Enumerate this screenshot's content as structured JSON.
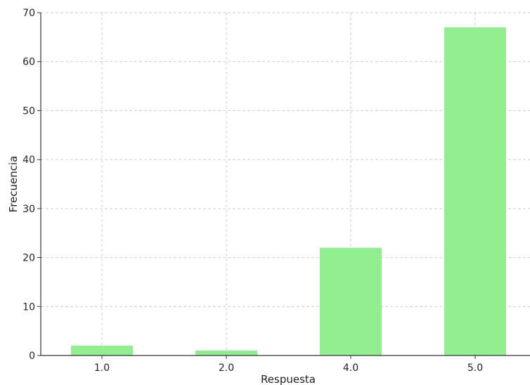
{
  "chart_data": {
    "type": "bar",
    "title": "",
    "xlabel": "Respuesta",
    "ylabel": "Frecuencia",
    "categories": [
      "1.0",
      "2.0",
      "4.0",
      "5.0"
    ],
    "values": [
      2,
      1,
      22,
      67
    ],
    "ylim": [
      0,
      70
    ],
    "yticks": [
      0,
      10,
      20,
      30,
      40,
      50,
      60,
      70
    ],
    "grid": true,
    "bar_color": "#90ee90",
    "grid_color": "#cccccc",
    "axis_color": "#333333"
  }
}
